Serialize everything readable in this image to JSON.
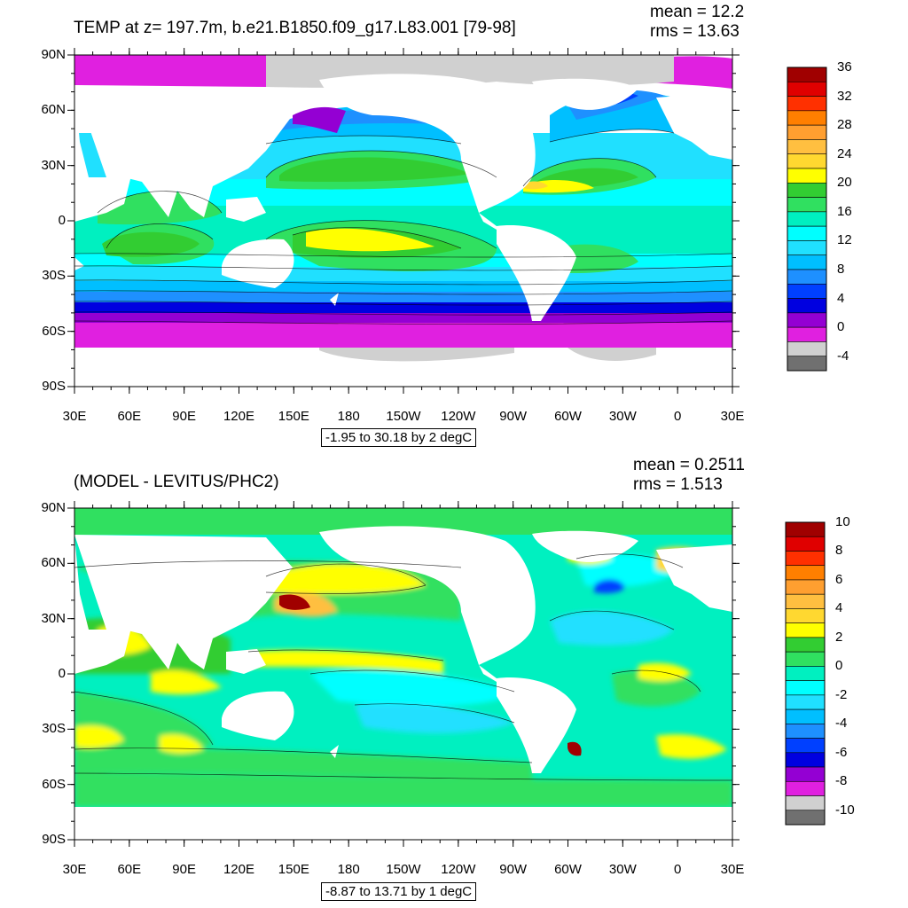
{
  "panels": [
    {
      "title": "TEMP at z= 197.7m, b.e21.B1850.f09_g17.L83.001 [79-98]",
      "mean": "mean = 12.2",
      "rms": "rms = 13.63",
      "range": "-1.95 to 30.18 by 2 degC",
      "lat_labels": [
        "90N",
        "60N",
        "30N",
        "0",
        "30S",
        "60S",
        "90S"
      ],
      "lon_labels": [
        "30E",
        "60E",
        "90E",
        "120E",
        "150E",
        "180",
        "150W",
        "120W",
        "90W",
        "60W",
        "30W",
        "0",
        "30E"
      ],
      "colorbar_labels": [
        "36",
        "32",
        "28",
        "24",
        "20",
        "16",
        "12",
        "8",
        "4",
        "0",
        "-4"
      ]
    },
    {
      "title": "(MODEL - LEVITUS/PHC2)",
      "mean": "mean = 0.2511",
      "rms": "rms = 1.513",
      "range": "-8.87 to 13.71 by 1 degC",
      "lat_labels": [
        "90N",
        "60N",
        "30N",
        "0",
        "30S",
        "60S",
        "90S"
      ],
      "lon_labels": [
        "30E",
        "60E",
        "90E",
        "120E",
        "150E",
        "180",
        "150W",
        "120W",
        "90W",
        "60W",
        "30W",
        "0",
        "30E"
      ],
      "colorbar_labels": [
        "10",
        "8",
        "6",
        "4",
        "2",
        "0",
        "-2",
        "-4",
        "-6",
        "-8",
        "-10"
      ]
    }
  ],
  "colors": {
    "bands_top_to_bottom": [
      "#a00000",
      "#e00000",
      "#ff3000",
      "#ff7f00",
      "#ff9f30",
      "#ffbf40",
      "#ffd830",
      "#ffff00",
      "#32cd32",
      "#30e060",
      "#00f0c0",
      "#00ffff",
      "#20e0ff",
      "#00bfff",
      "#1e90ff",
      "#0040ff",
      "#0000e0",
      "#9400d3",
      "#e020e0",
      "#d0d0d0",
      "#707070"
    ],
    "land": "#ffffff",
    "ice": "#d0d0d0"
  }
}
